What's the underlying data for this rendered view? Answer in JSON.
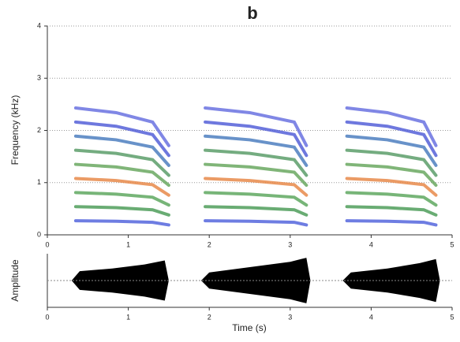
{
  "chart_data": [
    {
      "type": "spectrogram",
      "title": "b",
      "ylabel": "Frequency (kHz)",
      "xlim": [
        0,
        5
      ],
      "xticks": [
        0,
        1,
        2,
        3,
        4,
        5
      ],
      "ylim": [
        0,
        4
      ],
      "yticks": [
        0,
        1,
        2,
        3,
        4
      ],
      "grid": true,
      "calls": [
        {
          "x": [
            0.35,
            0.85,
            1.3,
            1.5
          ]
        },
        {
          "x": [
            1.95,
            2.5,
            3.05,
            3.2
          ]
        },
        {
          "x": [
            3.7,
            4.2,
            4.65,
            4.8
          ]
        }
      ],
      "harmonics": [
        {
          "color": "#5566dd",
          "values": [
            0.27,
            0.26,
            0.24,
            0.19
          ]
        },
        {
          "color": "#4f9e5a",
          "values": [
            0.54,
            0.52,
            0.48,
            0.38
          ]
        },
        {
          "color": "#5fa860",
          "values": [
            0.81,
            0.78,
            0.72,
            0.57
          ]
        },
        {
          "color": "#e8894a",
          "values": [
            1.08,
            1.04,
            0.96,
            0.76
          ]
        },
        {
          "color": "#6aa860",
          "values": [
            1.35,
            1.3,
            1.2,
            0.95
          ]
        },
        {
          "color": "#5c9e6a",
          "values": [
            1.62,
            1.56,
            1.44,
            1.14
          ]
        },
        {
          "color": "#4d7fc0",
          "values": [
            1.89,
            1.82,
            1.68,
            1.33
          ]
        },
        {
          "color": "#5560d8",
          "values": [
            2.16,
            2.08,
            1.92,
            1.52
          ]
        },
        {
          "color": "#6a72e0",
          "values": [
            2.43,
            2.34,
            2.16,
            1.71
          ]
        }
      ]
    },
    {
      "type": "waveform",
      "ylabel": "Amplitude",
      "xlabel": "Time (s)",
      "xlim": [
        0,
        5
      ],
      "xticks": [
        0,
        1,
        2,
        3,
        4,
        5
      ],
      "ylim": [
        -1,
        1
      ],
      "envelopes": [
        {
          "x": [
            0.3,
            0.4,
            0.8,
            1.2,
            1.45,
            1.5
          ],
          "values": [
            0,
            0.35,
            0.45,
            0.6,
            0.75,
            0
          ]
        },
        {
          "x": [
            1.9,
            2.0,
            2.5,
            3.0,
            3.2,
            3.25
          ],
          "values": [
            0,
            0.3,
            0.5,
            0.7,
            0.85,
            0
          ]
        },
        {
          "x": [
            3.65,
            3.75,
            4.2,
            4.6,
            4.8,
            4.85
          ],
          "values": [
            0,
            0.3,
            0.45,
            0.65,
            0.8,
            0
          ]
        }
      ]
    }
  ]
}
